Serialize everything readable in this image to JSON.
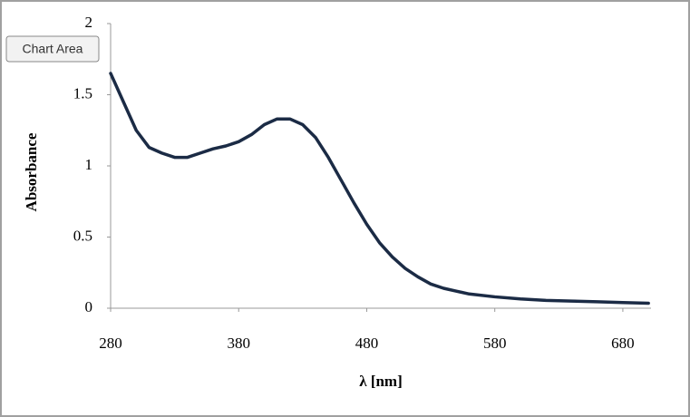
{
  "tooltip": "Chart Area",
  "chart_data": {
    "type": "line",
    "x_label": "λ [nm]",
    "y_label": "Absorbance",
    "x": [
      280,
      290,
      300,
      310,
      320,
      330,
      340,
      350,
      360,
      370,
      380,
      390,
      400,
      410,
      420,
      430,
      440,
      450,
      460,
      470,
      480,
      490,
      500,
      510,
      520,
      530,
      540,
      550,
      560,
      580,
      600,
      620,
      640,
      660,
      680,
      700
    ],
    "series": [
      {
        "name": "Absorbance",
        "color": "#1b2b45",
        "values": [
          1.65,
          1.45,
          1.25,
          1.13,
          1.09,
          1.06,
          1.06,
          1.09,
          1.12,
          1.14,
          1.17,
          1.22,
          1.29,
          1.33,
          1.33,
          1.29,
          1.2,
          1.06,
          0.9,
          0.74,
          0.59,
          0.46,
          0.36,
          0.28,
          0.22,
          0.17,
          0.14,
          0.12,
          0.1,
          0.08,
          0.065,
          0.055,
          0.05,
          0.045,
          0.04,
          0.035
        ]
      }
    ],
    "xlim": [
      280,
      702
    ],
    "ylim": [
      0,
      2
    ],
    "xticks": [
      280,
      380,
      480,
      580,
      680
    ],
    "yticks": [
      0,
      0.5,
      1,
      1.5,
      2
    ]
  }
}
